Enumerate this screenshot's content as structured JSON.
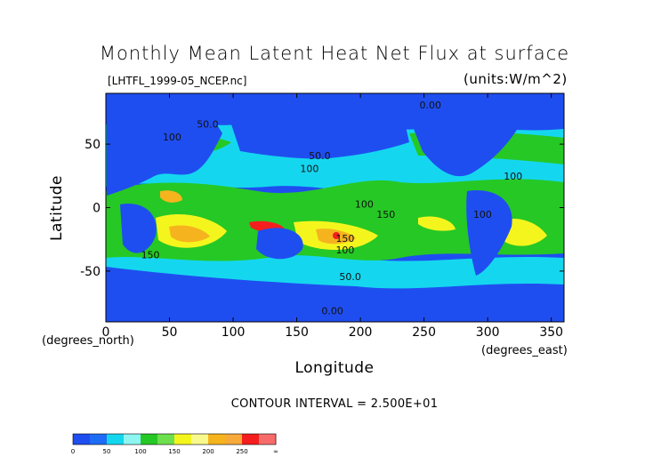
{
  "chart_data": {
    "type": "heatmap",
    "title": "Monthly Mean Latent Heat Net Flux at surface",
    "subtitle": "[LHTFL_1999-05_NCEP.nc]",
    "units_label": "(units:W/m^2)",
    "xlabel": "Longitude",
    "ylabel": "Latitude",
    "x_unit_label": "(degrees_east)",
    "y_unit_label": "(degrees_north)",
    "xlim": [
      0,
      360
    ],
    "ylim": [
      -90,
      90
    ],
    "x_ticks": [
      "0",
      "50",
      "100",
      "150",
      "200",
      "250",
      "300",
      "350"
    ],
    "y_ticks": [
      "50",
      "0",
      "-50"
    ],
    "contour_interval_text": "CONTOUR INTERVAL = 2.500E+01",
    "colorbar": {
      "labels": [
        "0",
        "50",
        "100",
        "150",
        "200",
        "250",
        "∞"
      ],
      "bins": [
        {
          "from": 0,
          "to": 25,
          "color": "#1f4ef0"
        },
        {
          "from": 25,
          "to": 50,
          "color": "#1e6cf5"
        },
        {
          "from": 50,
          "to": 75,
          "color": "#14d7ef"
        },
        {
          "from": 75,
          "to": 100,
          "color": "#8df5f2"
        },
        {
          "from": 100,
          "to": 125,
          "color": "#26c825"
        },
        {
          "from": 125,
          "to": 150,
          "color": "#6ee04e"
        },
        {
          "from": 150,
          "to": 175,
          "color": "#f5f51e"
        },
        {
          "from": 175,
          "to": 200,
          "color": "#f8f98c"
        },
        {
          "from": 200,
          "to": 225,
          "color": "#f5b41e"
        },
        {
          "from": 225,
          "to": 250,
          "color": "#f7a93a"
        },
        {
          "from": 250,
          "to": 275,
          "color": "#f51e1e"
        },
        {
          "from": 275,
          "to": 300,
          "color": "#f86b6b"
        }
      ]
    },
    "contour_labels": [
      {
        "text": "0.00",
        "lon": 255,
        "lat": 78
      },
      {
        "text": "50.0",
        "lon": 80,
        "lat": 63
      },
      {
        "text": "100",
        "lon": 52,
        "lat": 53
      },
      {
        "text": "50.0",
        "lon": 168,
        "lat": 38
      },
      {
        "text": "100",
        "lon": 160,
        "lat": 28
      },
      {
        "text": "100",
        "lon": 320,
        "lat": 22
      },
      {
        "text": "100",
        "lon": 203,
        "lat": 0
      },
      {
        "text": "150",
        "lon": 220,
        "lat": -8
      },
      {
        "text": "100",
        "lon": 296,
        "lat": -8
      },
      {
        "text": "150",
        "lon": 188,
        "lat": -27
      },
      {
        "text": "100",
        "lon": 188,
        "lat": -36
      },
      {
        "text": "150",
        "lon": 35,
        "lat": -40
      },
      {
        "text": "50.0",
        "lon": 192,
        "lat": -57
      },
      {
        "text": "0.00",
        "lon": 178,
        "lat": -84
      }
    ]
  }
}
